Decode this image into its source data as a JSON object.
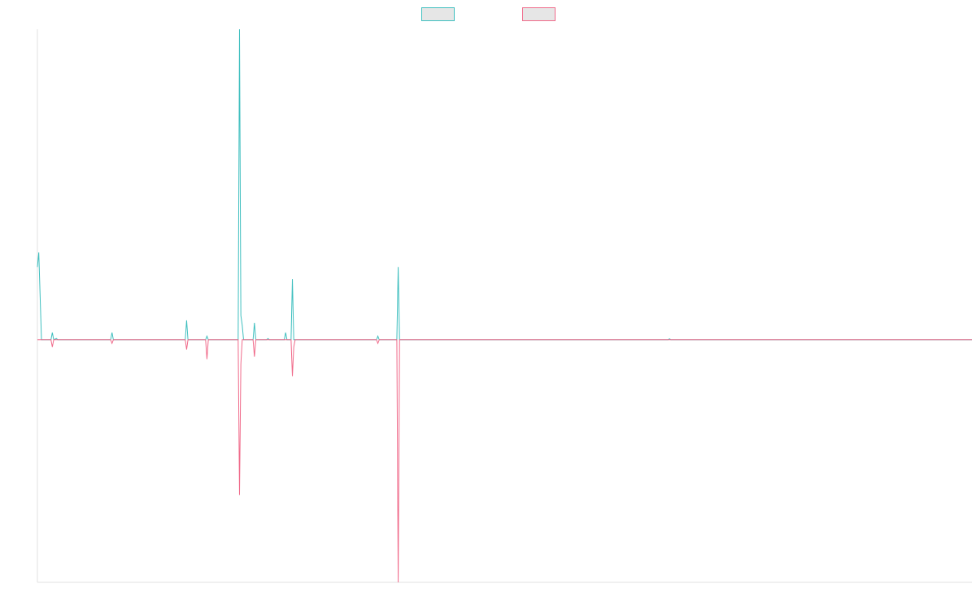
{
  "chart_data": {
    "type": "line",
    "title": "",
    "xlabel": "",
    "ylabel": "",
    "grid": false,
    "legend": "top-center",
    "ylim": [
      -1.0,
      1.28
    ],
    "colors": {
      "background": "#ffffff",
      "axis": "#e0e0e0",
      "legend_fill": "#e6e6e6"
    },
    "x_range": [
      0,
      689
    ],
    "series": [
      {
        "color": "#3fbfbf",
        "points": [
          [
            0,
            0.3
          ],
          [
            1,
            0.36
          ],
          [
            3,
            0.0
          ],
          [
            10,
            0.0
          ],
          [
            11,
            0.03
          ],
          [
            12,
            0.0
          ],
          [
            14,
            0.005
          ],
          [
            15,
            0.0
          ],
          [
            54,
            0.0
          ],
          [
            55,
            0.03
          ],
          [
            56,
            0.0
          ],
          [
            109,
            0.0
          ],
          [
            110,
            0.08
          ],
          [
            111,
            0.0
          ],
          [
            124,
            0.0
          ],
          [
            125,
            0.015
          ],
          [
            126,
            0.0
          ],
          [
            148,
            0.0
          ],
          [
            149,
            1.28
          ],
          [
            150,
            0.1
          ],
          [
            151,
            0.06
          ],
          [
            152,
            0.0
          ],
          [
            159,
            0.0
          ],
          [
            160,
            0.07
          ],
          [
            161,
            0.0
          ],
          [
            169,
            0.0
          ],
          [
            170,
            0.005
          ],
          [
            171,
            0.0
          ],
          [
            182,
            0.0
          ],
          [
            183,
            0.03
          ],
          [
            184,
            0.0
          ],
          [
            187,
            0.0
          ],
          [
            188,
            0.25
          ],
          [
            189,
            0.0
          ],
          [
            250,
            0.0
          ],
          [
            251,
            0.015
          ],
          [
            252,
            0.0
          ],
          [
            265,
            0.0
          ],
          [
            266,
            0.3
          ],
          [
            267,
            0.0
          ],
          [
            465,
            0.0
          ],
          [
            466,
            0.004
          ],
          [
            467,
            0.0
          ],
          [
            689,
            0.0
          ]
        ]
      },
      {
        "color": "#f06a8a",
        "points": [
          [
            0,
            0.0
          ],
          [
            10,
            0.0
          ],
          [
            11,
            -0.03
          ],
          [
            12,
            0.0
          ],
          [
            54,
            0.0
          ],
          [
            55,
            -0.015
          ],
          [
            56,
            0.0
          ],
          [
            109,
            0.0
          ],
          [
            110,
            -0.04
          ],
          [
            111,
            0.0
          ],
          [
            124,
            0.0
          ],
          [
            125,
            -0.08
          ],
          [
            126,
            0.0
          ],
          [
            148,
            0.0
          ],
          [
            149,
            -0.64
          ],
          [
            150,
            -0.1
          ],
          [
            151,
            0.0
          ],
          [
            159,
            0.0
          ],
          [
            160,
            -0.07
          ],
          [
            161,
            0.0
          ],
          [
            187,
            0.0
          ],
          [
            188,
            -0.15
          ],
          [
            189,
            -0.03
          ],
          [
            190,
            0.0
          ],
          [
            250,
            0.0
          ],
          [
            251,
            -0.015
          ],
          [
            252,
            0.0
          ],
          [
            265,
            0.0
          ],
          [
            266,
            -1.0
          ],
          [
            267,
            0.0
          ],
          [
            689,
            0.0
          ]
        ]
      }
    ]
  }
}
